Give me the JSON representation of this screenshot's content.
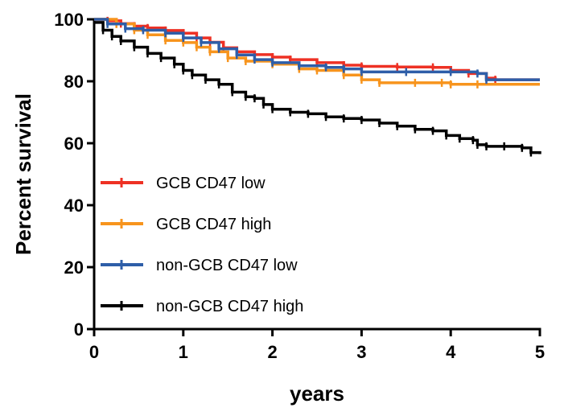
{
  "chart_data": {
    "type": "line",
    "title": "",
    "xlabel": "years",
    "ylabel": "Percent survival",
    "xlim": [
      0,
      5
    ],
    "ylim": [
      0,
      100
    ],
    "xticks": [
      0,
      1,
      2,
      3,
      4,
      5
    ],
    "yticks": [
      0,
      20,
      40,
      60,
      80,
      100
    ],
    "grid": false,
    "legend_position": "left",
    "series": [
      {
        "name": "GCB CD47 low",
        "color": "#ee3124",
        "points": [
          [
            0,
            100
          ],
          [
            0.15,
            99.5
          ],
          [
            0.3,
            98.6
          ],
          [
            0.45,
            97.8
          ],
          [
            0.6,
            97.2
          ],
          [
            0.8,
            96.4
          ],
          [
            1.0,
            95.5
          ],
          [
            1.15,
            94.0
          ],
          [
            1.3,
            92.6
          ],
          [
            1.45,
            90.8
          ],
          [
            1.6,
            89.5
          ],
          [
            1.8,
            88.6
          ],
          [
            2.0,
            87.8
          ],
          [
            2.2,
            87.0
          ],
          [
            2.5,
            86.0
          ],
          [
            2.8,
            85.2
          ],
          [
            3.0,
            84.8
          ],
          [
            3.4,
            84.6
          ],
          [
            3.8,
            84.5
          ],
          [
            4.0,
            83.5
          ],
          [
            4.2,
            82.5
          ],
          [
            4.4,
            81.0
          ],
          [
            4.5,
            80.5
          ],
          [
            5.0,
            80.5
          ]
        ]
      },
      {
        "name": "GCB CD47 high",
        "color": "#f7941d",
        "points": [
          [
            0,
            100
          ],
          [
            0.25,
            98.5
          ],
          [
            0.45,
            96.5
          ],
          [
            0.6,
            95.0
          ],
          [
            0.8,
            93.2
          ],
          [
            1.0,
            92.5
          ],
          [
            1.15,
            91.0
          ],
          [
            1.3,
            89.5
          ],
          [
            1.5,
            87.5
          ],
          [
            1.7,
            86.5
          ],
          [
            2.0,
            85.5
          ],
          [
            2.3,
            84.0
          ],
          [
            2.5,
            83.5
          ],
          [
            2.8,
            82.0
          ],
          [
            3.0,
            80.5
          ],
          [
            3.2,
            79.5
          ],
          [
            3.6,
            79.5
          ],
          [
            3.9,
            79.5
          ],
          [
            4.0,
            79.0
          ],
          [
            4.3,
            79.0
          ],
          [
            5.0,
            79.0
          ]
        ]
      },
      {
        "name": "non-GCB CD47 low",
        "color": "#2e5ea8",
        "points": [
          [
            0,
            100
          ],
          [
            0.15,
            98.5
          ],
          [
            0.35,
            97.0
          ],
          [
            0.55,
            96.5
          ],
          [
            0.8,
            95.5
          ],
          [
            1.0,
            94.0
          ],
          [
            1.2,
            92.5
          ],
          [
            1.4,
            90.5
          ],
          [
            1.6,
            88.5
          ],
          [
            1.8,
            87.0
          ],
          [
            2.0,
            86.0
          ],
          [
            2.3,
            85.0
          ],
          [
            2.6,
            84.5
          ],
          [
            2.8,
            84.0
          ],
          [
            3.0,
            83.0
          ],
          [
            3.5,
            83.0
          ],
          [
            4.0,
            83.0
          ],
          [
            4.3,
            82.5
          ],
          [
            4.4,
            80.5
          ],
          [
            5.0,
            80.5
          ]
        ]
      },
      {
        "name": "non-GCB CD47 high",
        "color": "#000000",
        "points": [
          [
            0,
            99
          ],
          [
            0.1,
            96.5
          ],
          [
            0.2,
            94.5
          ],
          [
            0.3,
            93.0
          ],
          [
            0.45,
            91.0
          ],
          [
            0.6,
            89.0
          ],
          [
            0.75,
            87.5
          ],
          [
            0.9,
            85.5
          ],
          [
            1.0,
            83.5
          ],
          [
            1.1,
            82.0
          ],
          [
            1.25,
            80.5
          ],
          [
            1.4,
            79.0
          ],
          [
            1.55,
            76.5
          ],
          [
            1.7,
            75.0
          ],
          [
            1.8,
            74.5
          ],
          [
            1.9,
            72.5
          ],
          [
            2.0,
            71.0
          ],
          [
            2.2,
            70.0
          ],
          [
            2.4,
            69.5
          ],
          [
            2.6,
            68.5
          ],
          [
            2.8,
            68.0
          ],
          [
            3.0,
            67.5
          ],
          [
            3.2,
            66.5
          ],
          [
            3.4,
            65.5
          ],
          [
            3.6,
            64.5
          ],
          [
            3.8,
            64.0
          ],
          [
            3.95,
            62.5
          ],
          [
            4.1,
            61.5
          ],
          [
            4.25,
            61.0
          ],
          [
            4.3,
            59.5
          ],
          [
            4.4,
            59.0
          ],
          [
            4.6,
            59.0
          ],
          [
            4.8,
            58.5
          ],
          [
            4.9,
            57.0
          ],
          [
            5.0,
            56.5
          ]
        ]
      }
    ]
  }
}
